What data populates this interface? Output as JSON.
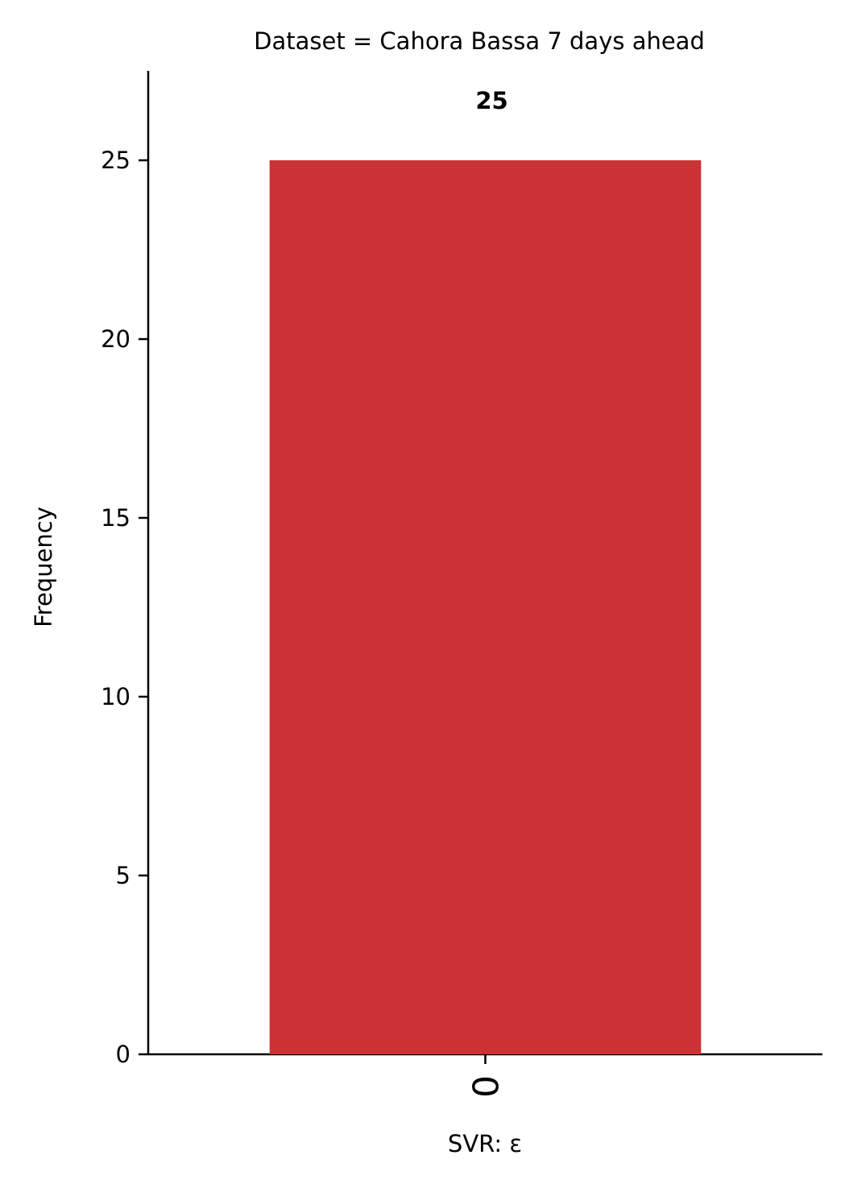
{
  "chart_data": {
    "type": "bar",
    "title": "Dataset = Cahora Bassa 7 days ahead",
    "xlabel": "SVR: ε",
    "ylabel": "Frequency",
    "categories": [
      "0"
    ],
    "values": [
      25
    ],
    "data_labels": [
      "25"
    ],
    "ylim": [
      0,
      27.5
    ],
    "yticks": [
      0,
      5,
      10,
      15,
      20,
      25
    ],
    "bar_color": "#cc3336",
    "xtick_rotation": "vertical",
    "grid": false,
    "legend": "none"
  }
}
